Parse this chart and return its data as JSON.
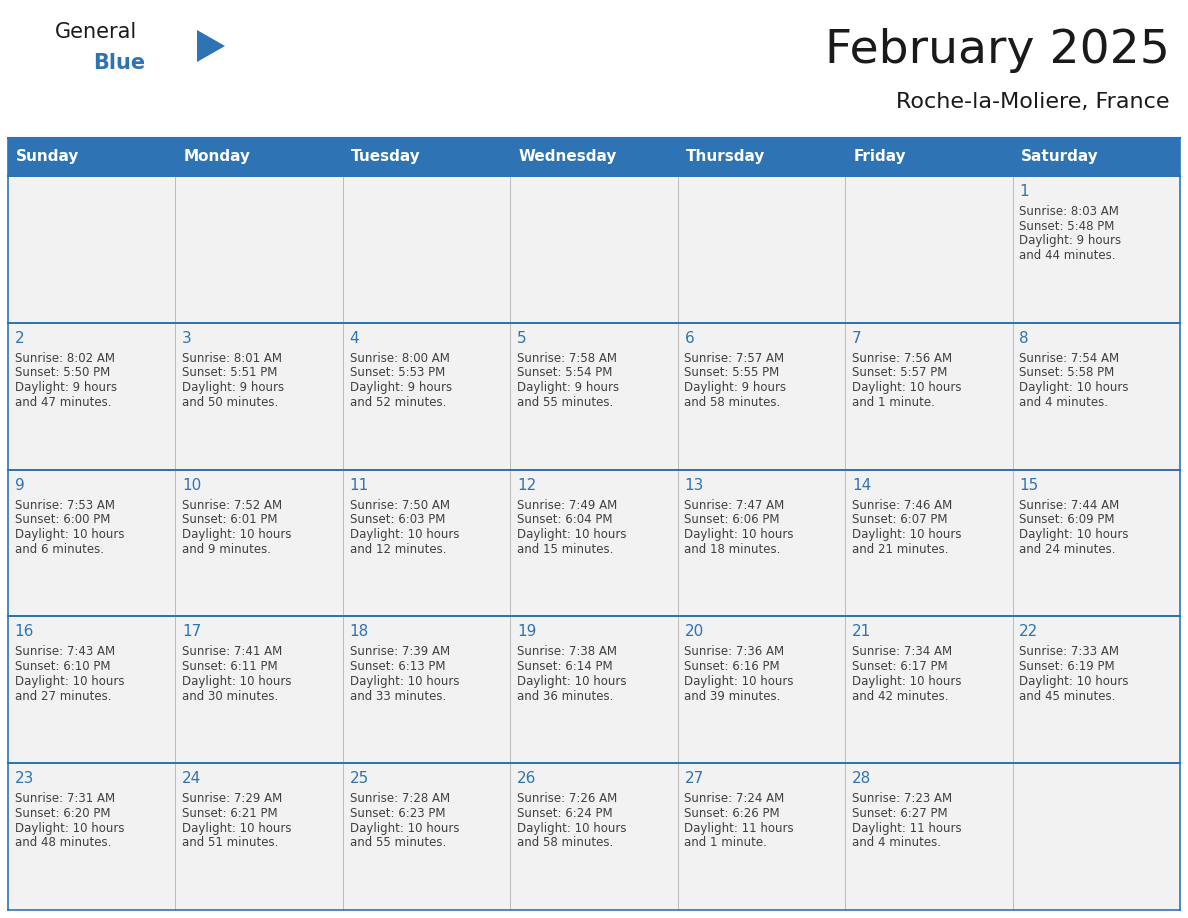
{
  "title": "February 2025",
  "subtitle": "Roche-la-Moliere, France",
  "header_bg": "#2E74B5",
  "header_text_color": "#FFFFFF",
  "cell_bg": "#F2F2F2",
  "cell_border_color": "#2E74B5",
  "day_number_color": "#2E74B5",
  "day_info_color": "#404040",
  "days_of_week": [
    "Sunday",
    "Monday",
    "Tuesday",
    "Wednesday",
    "Thursday",
    "Friday",
    "Saturday"
  ],
  "weeks": [
    [
      {
        "day": null,
        "info": ""
      },
      {
        "day": null,
        "info": ""
      },
      {
        "day": null,
        "info": ""
      },
      {
        "day": null,
        "info": ""
      },
      {
        "day": null,
        "info": ""
      },
      {
        "day": null,
        "info": ""
      },
      {
        "day": 1,
        "info": "Sunrise: 8:03 AM\nSunset: 5:48 PM\nDaylight: 9 hours\nand 44 minutes."
      }
    ],
    [
      {
        "day": 2,
        "info": "Sunrise: 8:02 AM\nSunset: 5:50 PM\nDaylight: 9 hours\nand 47 minutes."
      },
      {
        "day": 3,
        "info": "Sunrise: 8:01 AM\nSunset: 5:51 PM\nDaylight: 9 hours\nand 50 minutes."
      },
      {
        "day": 4,
        "info": "Sunrise: 8:00 AM\nSunset: 5:53 PM\nDaylight: 9 hours\nand 52 minutes."
      },
      {
        "day": 5,
        "info": "Sunrise: 7:58 AM\nSunset: 5:54 PM\nDaylight: 9 hours\nand 55 minutes."
      },
      {
        "day": 6,
        "info": "Sunrise: 7:57 AM\nSunset: 5:55 PM\nDaylight: 9 hours\nand 58 minutes."
      },
      {
        "day": 7,
        "info": "Sunrise: 7:56 AM\nSunset: 5:57 PM\nDaylight: 10 hours\nand 1 minute."
      },
      {
        "day": 8,
        "info": "Sunrise: 7:54 AM\nSunset: 5:58 PM\nDaylight: 10 hours\nand 4 minutes."
      }
    ],
    [
      {
        "day": 9,
        "info": "Sunrise: 7:53 AM\nSunset: 6:00 PM\nDaylight: 10 hours\nand 6 minutes."
      },
      {
        "day": 10,
        "info": "Sunrise: 7:52 AM\nSunset: 6:01 PM\nDaylight: 10 hours\nand 9 minutes."
      },
      {
        "day": 11,
        "info": "Sunrise: 7:50 AM\nSunset: 6:03 PM\nDaylight: 10 hours\nand 12 minutes."
      },
      {
        "day": 12,
        "info": "Sunrise: 7:49 AM\nSunset: 6:04 PM\nDaylight: 10 hours\nand 15 minutes."
      },
      {
        "day": 13,
        "info": "Sunrise: 7:47 AM\nSunset: 6:06 PM\nDaylight: 10 hours\nand 18 minutes."
      },
      {
        "day": 14,
        "info": "Sunrise: 7:46 AM\nSunset: 6:07 PM\nDaylight: 10 hours\nand 21 minutes."
      },
      {
        "day": 15,
        "info": "Sunrise: 7:44 AM\nSunset: 6:09 PM\nDaylight: 10 hours\nand 24 minutes."
      }
    ],
    [
      {
        "day": 16,
        "info": "Sunrise: 7:43 AM\nSunset: 6:10 PM\nDaylight: 10 hours\nand 27 minutes."
      },
      {
        "day": 17,
        "info": "Sunrise: 7:41 AM\nSunset: 6:11 PM\nDaylight: 10 hours\nand 30 minutes."
      },
      {
        "day": 18,
        "info": "Sunrise: 7:39 AM\nSunset: 6:13 PM\nDaylight: 10 hours\nand 33 minutes."
      },
      {
        "day": 19,
        "info": "Sunrise: 7:38 AM\nSunset: 6:14 PM\nDaylight: 10 hours\nand 36 minutes."
      },
      {
        "day": 20,
        "info": "Sunrise: 7:36 AM\nSunset: 6:16 PM\nDaylight: 10 hours\nand 39 minutes."
      },
      {
        "day": 21,
        "info": "Sunrise: 7:34 AM\nSunset: 6:17 PM\nDaylight: 10 hours\nand 42 minutes."
      },
      {
        "day": 22,
        "info": "Sunrise: 7:33 AM\nSunset: 6:19 PM\nDaylight: 10 hours\nand 45 minutes."
      }
    ],
    [
      {
        "day": 23,
        "info": "Sunrise: 7:31 AM\nSunset: 6:20 PM\nDaylight: 10 hours\nand 48 minutes."
      },
      {
        "day": 24,
        "info": "Sunrise: 7:29 AM\nSunset: 6:21 PM\nDaylight: 10 hours\nand 51 minutes."
      },
      {
        "day": 25,
        "info": "Sunrise: 7:28 AM\nSunset: 6:23 PM\nDaylight: 10 hours\nand 55 minutes."
      },
      {
        "day": 26,
        "info": "Sunrise: 7:26 AM\nSunset: 6:24 PM\nDaylight: 10 hours\nand 58 minutes."
      },
      {
        "day": 27,
        "info": "Sunrise: 7:24 AM\nSunset: 6:26 PM\nDaylight: 11 hours\nand 1 minute."
      },
      {
        "day": 28,
        "info": "Sunrise: 7:23 AM\nSunset: 6:27 PM\nDaylight: 11 hours\nand 4 minutes."
      },
      {
        "day": null,
        "info": ""
      }
    ]
  ],
  "logo_general_color": "#1a1a1a",
  "logo_blue_color": "#2E74B5",
  "title_fontsize": 34,
  "subtitle_fontsize": 16,
  "header_fontsize": 11,
  "day_number_fontsize": 11,
  "day_info_fontsize": 8.5
}
